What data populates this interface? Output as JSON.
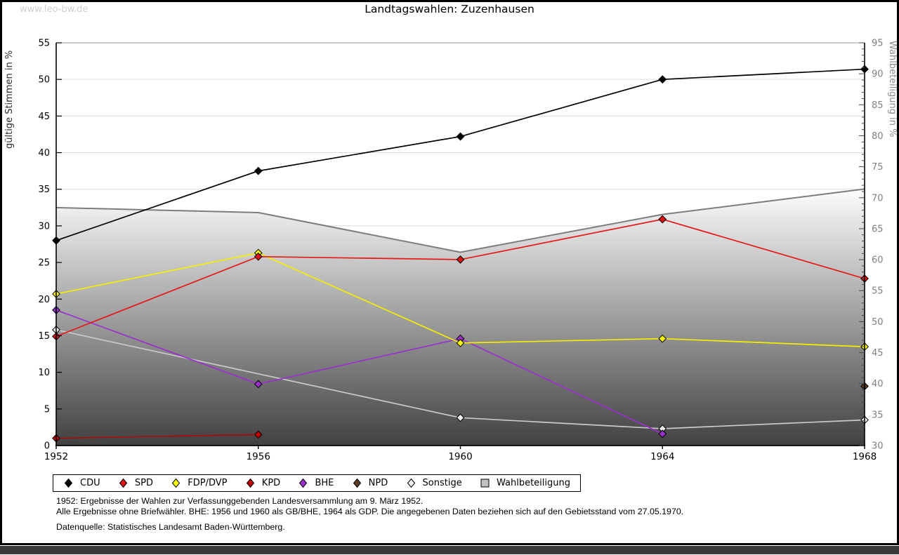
{
  "page": {
    "watermark": "www.leo-bw.de",
    "title": "Landtagswahlen: Zuzenhausen",
    "footnotes": [
      "1952: Ergebnisse der Wahlen zur Verfassunggebenden Landesversammlung am 9. März 1952.",
      "Alle Ergebnisse ohne Briefwähler. BHE: 1956 und 1960 als GB/BHE, 1964 als GDP. Die angegebenen Daten beziehen sich auf den Gebietsstand vom 27.05.1970.",
      "Datenquelle: Statistisches Landesamt Baden-Württemberg."
    ]
  },
  "chart_data": {
    "type": "line",
    "title": "Landtagswahlen: Zuzenhausen",
    "x": [
      1952,
      1956,
      1960,
      1964,
      1968
    ],
    "ylabel_left": "gültige Stimmen in %",
    "ylabel_right": "Wahlbeteiligung in %",
    "ylim_left": [
      0,
      55
    ],
    "ylim_right": [
      30,
      95
    ],
    "ytick_step": 5,
    "right_minor_tick_step": 1,
    "grid": true,
    "legend_position": "bottom",
    "colors": {
      "grid": "#dadada",
      "axis": "#000000",
      "right_axis_text": "#7f7f7f",
      "left_axis_text": "#000000",
      "area_fill_top": "#ffffff",
      "area_fill_bottom": "#414141",
      "area_edge": "#7d7d7d"
    },
    "series": [
      {
        "name": "CDU",
        "axis": "left",
        "kind": "line",
        "z": 6,
        "color": "#000000",
        "marker_color": "#000000",
        "values": [
          28.0,
          37.5,
          42.2,
          50.0,
          51.4
        ]
      },
      {
        "name": "SPD",
        "axis": "left",
        "kind": "line",
        "z": 5,
        "color": "#e51919",
        "marker_color": "#dd1111",
        "values": [
          14.9,
          25.8,
          25.4,
          30.9,
          22.8
        ]
      },
      {
        "name": "FDP/DVP",
        "axis": "left",
        "kind": "line",
        "z": 4,
        "color": "#f2ee00",
        "marker_color": "#ffff00",
        "values": [
          20.7,
          26.3,
          14.0,
          14.6,
          13.5
        ]
      },
      {
        "name": "KPD",
        "axis": "left",
        "kind": "line",
        "z": 2,
        "color": "#a50f0f",
        "marker_color": "#c00000",
        "values": [
          1.0,
          1.5,
          null,
          null,
          null
        ]
      },
      {
        "name": "BHE",
        "axis": "left",
        "kind": "line",
        "z": 3,
        "color": "#9932cc",
        "marker_color": "#9932cc",
        "values": [
          18.5,
          8.4,
          14.6,
          1.6,
          null
        ]
      },
      {
        "name": "NPD",
        "axis": "left",
        "kind": "line",
        "z": 7,
        "color": "#5a3a22",
        "marker_color": "#5a3a22",
        "values": [
          null,
          null,
          null,
          null,
          8.1
        ]
      },
      {
        "name": "Sonstige",
        "axis": "left",
        "kind": "line",
        "z": 1,
        "color": "#c9c9c9",
        "marker_color": "#ececec",
        "values": [
          15.8,
          null,
          3.8,
          2.3,
          3.5
        ]
      },
      {
        "name": "Wahlbeteiligung",
        "axis": "right",
        "kind": "area",
        "z": 0,
        "color": "#7d7d7d",
        "marker_color": "#c2c2c2",
        "values": [
          68.4,
          67.6,
          61.2,
          67.3,
          71.4
        ]
      }
    ]
  }
}
